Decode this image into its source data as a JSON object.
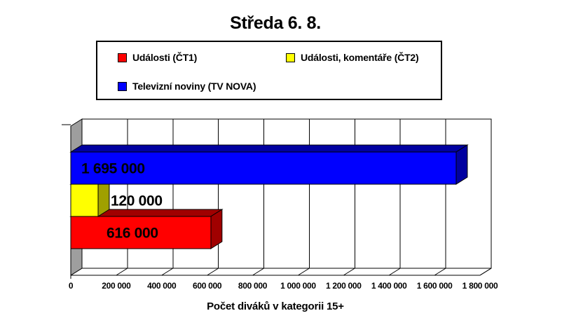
{
  "chart_data": {
    "type": "bar",
    "variant": "3d-horizontal-bars",
    "title": "Středa 6. 8.",
    "xlabel": "Počet diváků v kategorii 15+",
    "legend_position": "top",
    "grid": true,
    "axis": {
      "min": 0,
      "max": 1800000,
      "tick_step": 200000,
      "tick_labels": [
        "0",
        "200 000",
        "400 000",
        "600 000",
        "800 000",
        "1 000 000",
        "1 200 000",
        "1 400 000",
        "1 600 000",
        "1 800 000"
      ]
    },
    "series": [
      {
        "id": "udalosti-ct1",
        "name": "Události (ČT1)",
        "value": 616000,
        "label": "616 000",
        "color": "#FF0000",
        "shade_color": "#A00000"
      },
      {
        "id": "udalosti-komentare-ct2",
        "name": "Události, komentáře (ČT2)",
        "value": 120000,
        "label": "120 000",
        "color": "#FFFF00",
        "shade_color": "#A0A000"
      },
      {
        "id": "televizni-noviny-tv-nova",
        "name": "Televizní noviny (TV NOVA)",
        "value": 1695000,
        "label": "1 695 000",
        "color": "#0000FF",
        "shade_color": "#0000A0"
      }
    ],
    "bars_top_to_bottom": [
      "televizni-noviny-tv-nova",
      "udalosti-komentare-ct2",
      "udalosti-ct1"
    ],
    "colors": {
      "wall": "#9E9E9E",
      "background": "#FFFFFF",
      "line": "#000000",
      "text": "#000000"
    }
  }
}
